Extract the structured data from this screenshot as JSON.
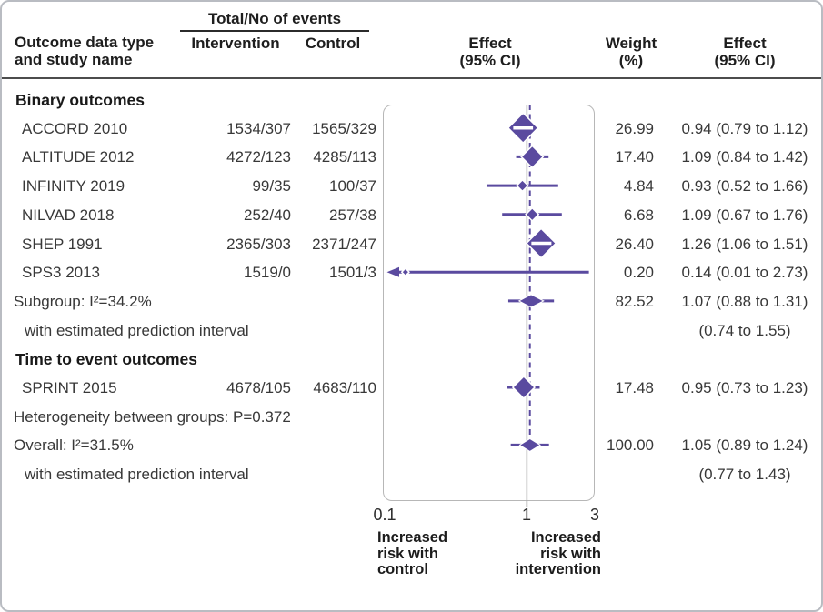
{
  "figure": {
    "header": {
      "events_group": "Total/No of events",
      "col_outcome_l1": "Outcome data type",
      "col_outcome_l2": "and study name",
      "col_intervention": "Intervention",
      "col_control": "Control",
      "col_effect_plot": [
        "Effect",
        "(95% CI)"
      ],
      "col_weight": [
        "Weight",
        "(%)"
      ],
      "col_effect": [
        "Effect",
        "(95% CI)"
      ]
    }
  },
  "chart_data": {
    "type": "forest",
    "x_axis": {
      "scale": "log",
      "ticks": [
        0.1,
        1,
        3
      ],
      "tick_labels": [
        "0.1",
        "1",
        "3"
      ],
      "range": [
        0.1,
        3
      ],
      "null_value": 1,
      "overall_value": 1.05
    },
    "direction_labels": {
      "left": [
        "Increased",
        "risk with",
        "control"
      ],
      "right": [
        "Increased",
        "risk with",
        "intervention"
      ]
    },
    "rows": [
      {
        "kind": "group",
        "label": "Binary outcomes"
      },
      {
        "kind": "study",
        "label": "ACCORD 2010",
        "intervention": "1534/307",
        "control": "1565/329",
        "est": 0.94,
        "lo": 0.79,
        "hi": 1.12,
        "weight": 26.99,
        "weight_text": "26.99",
        "effect_text": "0.94 (0.79 to 1.12)"
      },
      {
        "kind": "study",
        "label": "ALTITUDE 2012",
        "intervention": "4272/123",
        "control": "4285/113",
        "est": 1.09,
        "lo": 0.84,
        "hi": 1.42,
        "weight": 17.4,
        "weight_text": "17.40",
        "effect_text": "1.09 (0.84 to 1.42)"
      },
      {
        "kind": "study",
        "label": "INFINITY 2019",
        "intervention": "99/35",
        "control": "100/37",
        "est": 0.93,
        "lo": 0.52,
        "hi": 1.66,
        "weight": 4.84,
        "weight_text": "4.84",
        "effect_text": "0.93 (0.52 to 1.66)"
      },
      {
        "kind": "study",
        "label": "NILVAD 2018",
        "intervention": "252/40",
        "control": "257/38",
        "est": 1.09,
        "lo": 0.67,
        "hi": 1.76,
        "weight": 6.68,
        "weight_text": "6.68",
        "effect_text": "1.09 (0.67 to 1.76)"
      },
      {
        "kind": "study",
        "label": "SHEP 1991",
        "intervention": "2365/303",
        "control": "2371/247",
        "est": 1.26,
        "lo": 1.06,
        "hi": 1.51,
        "weight": 26.4,
        "weight_text": "26.40",
        "effect_text": "1.26 (1.06 to 1.51)"
      },
      {
        "kind": "study",
        "label": "SPS3 2013",
        "intervention": "1519/0",
        "control": "1501/3",
        "est": 0.14,
        "lo": 0.01,
        "hi": 2.73,
        "weight": 0.2,
        "weight_text": "0.20",
        "effect_text": "0.14 (0.01 to 2.73)",
        "clip_low": true
      },
      {
        "kind": "summary",
        "label": "Subgroup: I²=34.2%",
        "est": 1.07,
        "lo": 0.88,
        "hi": 1.31,
        "pi_lo": 0.74,
        "pi_hi": 1.55,
        "weight_text": "82.52",
        "effect_text": "1.07 (0.88 to 1.31)"
      },
      {
        "kind": "note",
        "indent": true,
        "label": "with estimated prediction interval",
        "effect_text": "(0.74 to 1.55)"
      },
      {
        "kind": "group",
        "label": "Time to event outcomes"
      },
      {
        "kind": "study",
        "label": "SPRINT 2015",
        "intervention": "4678/105",
        "control": "4683/110",
        "est": 0.95,
        "lo": 0.73,
        "hi": 1.23,
        "weight": 17.48,
        "weight_text": "17.48",
        "effect_text": "0.95 (0.73 to 1.23)"
      },
      {
        "kind": "note",
        "indent": false,
        "label": "Heterogeneity between groups: P=0.372"
      },
      {
        "kind": "summary",
        "label": "Overall: I²=31.5%",
        "est": 1.05,
        "lo": 0.89,
        "hi": 1.24,
        "pi_lo": 0.77,
        "pi_hi": 1.43,
        "weight_text": "100.00",
        "effect_text": "1.05 (0.89 to 1.24)"
      },
      {
        "kind": "note",
        "indent": true,
        "label": "with estimated prediction interval",
        "effect_text": "(0.77 to 1.43)"
      }
    ],
    "colors": {
      "marker": "#5a4a9f",
      "null_line": "#a3a3a3",
      "frame_border": "#b7b7b7",
      "text": "#383838"
    }
  }
}
